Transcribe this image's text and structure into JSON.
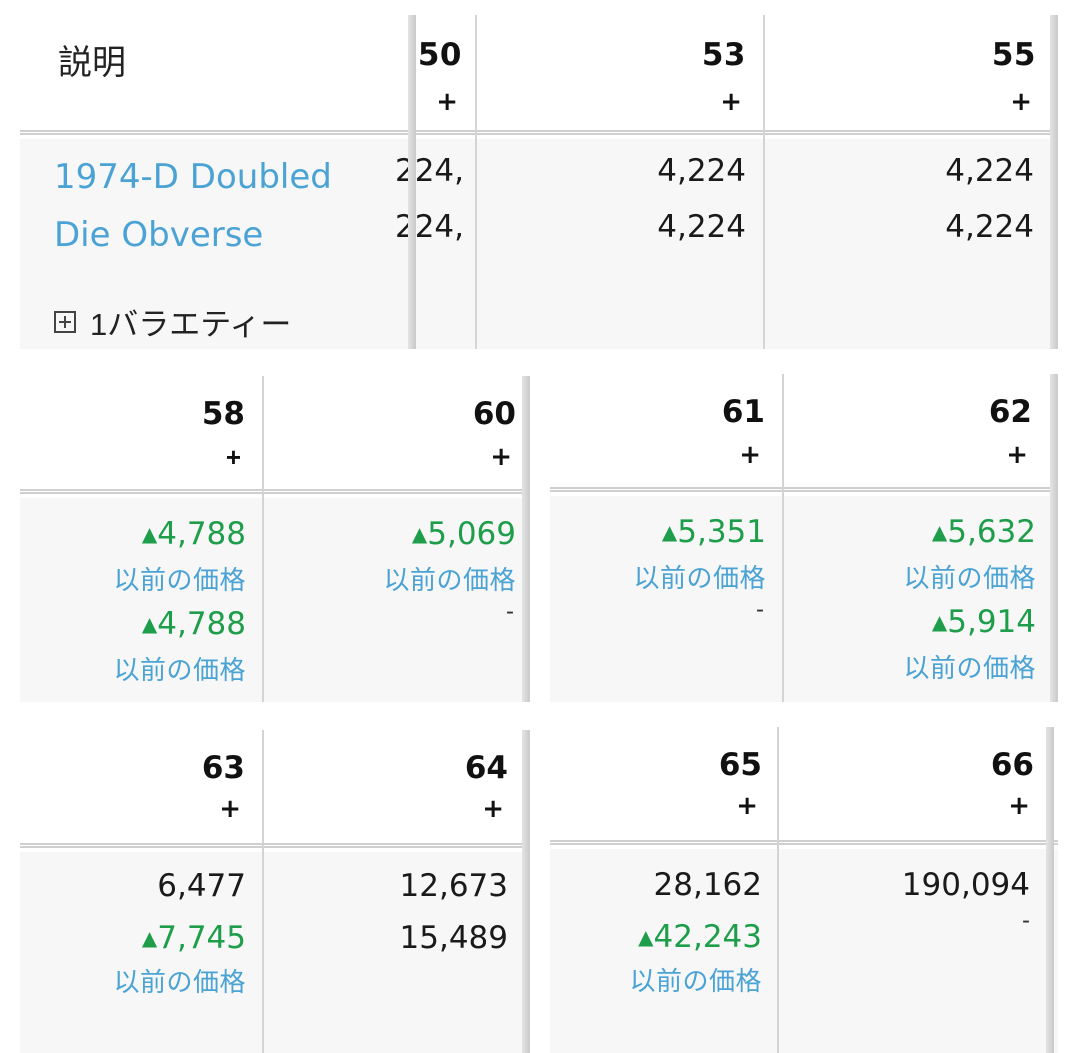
{
  "top": {
    "description_header": "説明",
    "grades": [
      {
        "grade": "50",
        "plus": "+"
      },
      {
        "grade": "53",
        "plus": "+"
      },
      {
        "grade": "55",
        "plus": "+"
      }
    ],
    "coin": {
      "line1": "1974-D Doubled",
      "line2": "Die Obverse"
    },
    "variety": {
      "label": "1バラエティー"
    },
    "values": [
      {
        "v1": ",224",
        "v2": ",224"
      },
      {
        "v1": "4,224",
        "v2": "4,224"
      },
      {
        "v1": "4,224",
        "v2": "4,224"
      }
    ]
  },
  "panel_58_60": {
    "grades": [
      {
        "grade": "58",
        "plus": "+"
      },
      {
        "grade": "60",
        "plus": "+"
      }
    ],
    "g58": {
      "up1": "4,788",
      "prev1": "以前の価格",
      "up2": "4,788",
      "prev2": "以前の価格"
    },
    "g60": {
      "up1": "5,069",
      "prev1": "以前の価格",
      "dash": "-"
    }
  },
  "panel_61_62": {
    "grades": [
      {
        "grade": "61",
        "plus": "+"
      },
      {
        "grade": "62",
        "plus": "+"
      }
    ],
    "g61": {
      "up1": "5,351",
      "prev1": "以前の価格",
      "dash": "-"
    },
    "g62": {
      "up1": "5,632",
      "prev1": "以前の価格",
      "up2": "5,914",
      "prev2": "以前の価格"
    }
  },
  "panel_63_64": {
    "grades": [
      {
        "grade": "63",
        "plus": "+"
      },
      {
        "grade": "64",
        "plus": "+"
      }
    ],
    "g63": {
      "val1": "6,477",
      "up2": "7,745",
      "prev2": "以前の価格"
    },
    "g64": {
      "val1": "12,673",
      "val2": "15,489"
    }
  },
  "panel_65_66": {
    "grades": [
      {
        "grade": "65",
        "plus": "+"
      },
      {
        "grade": "66",
        "plus": "+"
      }
    ],
    "g65": {
      "val1": "28,162",
      "up2": "42,243",
      "prev2": "以前の価格"
    },
    "g66": {
      "val1": "190,094",
      "dash": "-"
    }
  },
  "icons": {
    "up_arrow": "▲"
  }
}
